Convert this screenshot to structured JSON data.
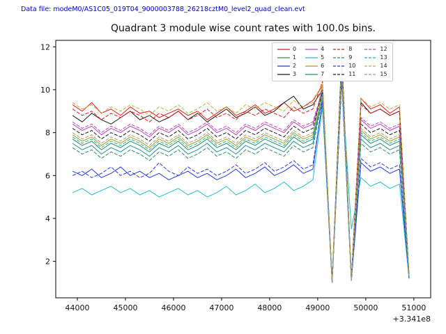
{
  "header": {
    "data_file_label": "Data file: modeM0/AS1C05_019T04_9000003788_26218cztM0_level2_quad_clean.evt"
  },
  "chart_data": {
    "type": "line",
    "title": "Quadrant 3 module wise count rates with 100.0s bins.",
    "xlabel": "",
    "ylabel": "",
    "x_offset_label": "+3.341e8",
    "xlim": [
      43550,
      51350
    ],
    "ylim": [
      0.3,
      12.3
    ],
    "xtick_values": [
      44000,
      45000,
      46000,
      47000,
      48000,
      49000,
      50000,
      51000
    ],
    "xtick_labels": [
      "44000",
      "45000",
      "46000",
      "47000",
      "48000",
      "49000",
      "50000",
      "51000"
    ],
    "ytick_values": [
      2,
      4,
      6,
      8,
      10,
      12
    ],
    "ytick_labels": [
      "2",
      "4",
      "6",
      "8",
      "10",
      "12"
    ],
    "legend_position": "upper right",
    "legend_columns": 4,
    "grid": false,
    "x": [
      43900,
      44100,
      44300,
      44500,
      44700,
      44900,
      45100,
      45300,
      45500,
      45700,
      45900,
      46100,
      46300,
      46500,
      46700,
      46900,
      47100,
      47300,
      47500,
      47700,
      47900,
      48100,
      48300,
      48500,
      48700,
      48900,
      49100,
      49300,
      49500,
      49700,
      49900,
      50100,
      50300,
      50500,
      50700,
      50900
    ],
    "series": [
      {
        "name": "0",
        "color": "#e11919",
        "dashed": false,
        "values": [
          9.3,
          9.0,
          9.4,
          8.9,
          9.1,
          8.8,
          9.2,
          8.9,
          9.0,
          8.7,
          8.9,
          9.1,
          8.8,
          9.0,
          8.6,
          8.9,
          9.2,
          8.8,
          9.0,
          9.3,
          8.9,
          9.1,
          9.4,
          9.0,
          9.2,
          9.5,
          10.2,
          1.0,
          11.3,
          1.2,
          9.6,
          9.1,
          9.3,
          8.9,
          9.2,
          1.3
        ]
      },
      {
        "name": "1",
        "color": "#2e8b57",
        "dashed": false,
        "values": [
          7.7,
          7.4,
          7.6,
          7.2,
          7.5,
          7.3,
          7.6,
          7.4,
          7.1,
          7.5,
          7.3,
          7.6,
          7.2,
          7.4,
          7.7,
          7.3,
          7.5,
          7.2,
          7.6,
          7.4,
          7.7,
          7.5,
          7.3,
          7.8,
          7.5,
          7.7,
          9.8,
          1.0,
          11.0,
          1.1,
          7.9,
          7.5,
          7.7,
          7.4,
          7.6,
          1.3
        ]
      },
      {
        "name": "2",
        "color": "#2438d8",
        "dashed": false,
        "values": [
          6.2,
          6.0,
          6.3,
          5.9,
          6.1,
          6.4,
          6.0,
          6.2,
          5.9,
          6.1,
          5.8,
          6.0,
          6.2,
          5.9,
          6.1,
          5.8,
          6.0,
          6.3,
          5.9,
          6.1,
          6.4,
          6.0,
          6.2,
          6.5,
          6.1,
          6.3,
          9.5,
          1.0,
          10.8,
          1.1,
          6.6,
          6.2,
          6.4,
          6.1,
          6.3,
          1.2
        ]
      },
      {
        "name": "3",
        "color": "#1a1a1a",
        "dashed": false,
        "values": [
          8.8,
          8.5,
          8.9,
          8.6,
          8.4,
          8.7,
          9.0,
          8.6,
          8.8,
          8.5,
          8.7,
          9.0,
          8.6,
          8.9,
          8.5,
          8.8,
          9.1,
          8.7,
          8.9,
          9.2,
          8.8,
          9.0,
          9.4,
          9.7,
          9.1,
          9.3,
          10.0,
          1.1,
          11.7,
          1.2,
          9.4,
          8.9,
          9.1,
          8.8,
          9.0,
          1.4
        ]
      },
      {
        "name": "4",
        "color": "#bb44bb",
        "dashed": false,
        "values": [
          8.4,
          8.1,
          8.3,
          7.9,
          8.2,
          8.0,
          8.3,
          8.1,
          7.8,
          8.2,
          8.0,
          8.3,
          7.9,
          8.1,
          8.4,
          8.0,
          8.2,
          7.9,
          8.3,
          8.1,
          8.4,
          8.2,
          8.0,
          8.5,
          8.2,
          8.4,
          9.9,
          1.0,
          11.1,
          1.1,
          8.6,
          8.2,
          8.4,
          8.1,
          8.3,
          1.3
        ]
      },
      {
        "name": "5",
        "color": "#1fbecb",
        "dashed": false,
        "values": [
          5.2,
          5.4,
          5.1,
          5.3,
          5.5,
          5.2,
          5.4,
          5.1,
          5.3,
          5.0,
          5.2,
          5.4,
          5.1,
          5.3,
          5.0,
          5.2,
          5.5,
          5.1,
          5.3,
          5.6,
          5.2,
          5.4,
          5.7,
          5.3,
          5.5,
          5.8,
          9.2,
          1.0,
          10.5,
          3.5,
          5.9,
          5.5,
          5.7,
          5.4,
          5.6,
          1.2
        ]
      },
      {
        "name": "6",
        "color": "#a89a10",
        "dashed": false,
        "values": [
          7.9,
          7.6,
          7.8,
          7.4,
          7.7,
          7.5,
          7.8,
          7.6,
          7.3,
          7.7,
          7.5,
          7.8,
          7.4,
          7.6,
          7.9,
          7.5,
          7.7,
          7.4,
          7.8,
          7.6,
          7.9,
          7.7,
          7.5,
          8.0,
          7.7,
          7.9,
          10.3,
          1.1,
          10.9,
          1.2,
          8.1,
          7.7,
          7.9,
          7.6,
          7.8,
          1.3
        ]
      },
      {
        "name": "7",
        "color": "#1c8f96",
        "dashed": false,
        "values": [
          7.5,
          7.2,
          7.4,
          7.0,
          7.3,
          7.1,
          7.4,
          7.2,
          6.9,
          7.3,
          7.1,
          7.4,
          7.0,
          7.2,
          7.5,
          7.1,
          7.3,
          7.0,
          7.4,
          7.2,
          7.5,
          7.3,
          7.1,
          7.6,
          7.3,
          7.5,
          9.7,
          1.0,
          10.7,
          1.1,
          7.7,
          7.3,
          7.5,
          7.2,
          7.4,
          1.2
        ]
      },
      {
        "name": "8",
        "color": "#e11919",
        "dashed": true,
        "values": [
          9.1,
          8.8,
          9.0,
          8.6,
          8.9,
          8.7,
          9.0,
          8.8,
          8.5,
          8.9,
          8.7,
          9.0,
          8.6,
          8.8,
          9.1,
          8.7,
          8.9,
          8.6,
          9.0,
          8.8,
          9.1,
          8.9,
          8.7,
          9.2,
          8.9,
          9.1,
          10.4,
          1.1,
          11.2,
          1.2,
          9.3,
          8.9,
          9.1,
          8.8,
          9.0,
          1.3
        ]
      },
      {
        "name": "9",
        "color": "#2e8b57",
        "dashed": true,
        "values": [
          7.3,
          7.0,
          7.2,
          6.8,
          7.1,
          6.9,
          7.2,
          7.0,
          6.7,
          7.1,
          6.9,
          7.2,
          6.8,
          7.0,
          7.3,
          6.9,
          7.1,
          6.8,
          7.2,
          7.0,
          7.3,
          7.1,
          6.9,
          7.4,
          7.1,
          7.3,
          9.6,
          1.0,
          10.6,
          1.1,
          7.5,
          7.1,
          7.3,
          7.0,
          7.2,
          1.2
        ]
      },
      {
        "name": "10",
        "color": "#2438d8",
        "dashed": true,
        "values": [
          6.0,
          6.2,
          5.9,
          6.1,
          6.4,
          6.0,
          6.2,
          5.9,
          6.1,
          6.6,
          6.2,
          6.0,
          6.4,
          6.1,
          6.3,
          6.0,
          6.2,
          6.5,
          6.1,
          6.3,
          6.6,
          6.2,
          6.4,
          6.7,
          6.3,
          6.5,
          9.4,
          1.0,
          10.4,
          1.1,
          6.8,
          6.4,
          6.6,
          6.3,
          6.5,
          1.2
        ]
      },
      {
        "name": "11",
        "color": "#1a1a1a",
        "dashed": true,
        "values": [
          8.2,
          7.9,
          8.1,
          7.7,
          8.0,
          7.8,
          8.1,
          7.9,
          7.6,
          8.0,
          7.8,
          8.1,
          7.7,
          7.9,
          8.2,
          7.8,
          8.0,
          7.7,
          8.1,
          7.9,
          8.2,
          8.0,
          7.8,
          8.3,
          8.0,
          8.2,
          9.9,
          1.1,
          11.0,
          1.2,
          8.4,
          8.0,
          8.2,
          7.9,
          8.1,
          1.3
        ]
      },
      {
        "name": "12",
        "color": "#bb44bb",
        "dashed": true,
        "values": [
          8.5,
          8.2,
          8.4,
          8.0,
          8.3,
          8.1,
          8.4,
          8.2,
          7.9,
          8.3,
          8.1,
          8.4,
          8.0,
          8.2,
          8.5,
          8.1,
          8.3,
          8.0,
          8.4,
          8.2,
          8.5,
          8.3,
          8.1,
          8.6,
          8.3,
          8.5,
          10.0,
          1.0,
          11.2,
          1.1,
          8.7,
          8.3,
          8.5,
          8.2,
          8.4,
          1.3
        ]
      },
      {
        "name": "13",
        "color": "#18b0c0",
        "dashed": true,
        "values": [
          7.8,
          7.5,
          7.7,
          7.3,
          7.6,
          7.4,
          7.7,
          7.5,
          7.2,
          7.6,
          7.4,
          7.7,
          7.3,
          7.5,
          7.8,
          7.4,
          7.6,
          7.3,
          7.7,
          7.5,
          7.8,
          7.6,
          7.4,
          7.9,
          7.6,
          7.8,
          9.8,
          1.0,
          10.8,
          1.1,
          8.0,
          7.6,
          7.8,
          7.5,
          7.7,
          1.2
        ]
      },
      {
        "name": "14",
        "color": "#bdb23a",
        "dashed": true,
        "values": [
          9.4,
          9.1,
          9.3,
          8.9,
          9.2,
          9.0,
          9.3,
          9.1,
          8.8,
          9.2,
          9.0,
          9.3,
          8.9,
          9.1,
          9.4,
          9.0,
          9.2,
          8.9,
          9.3,
          9.1,
          9.4,
          9.2,
          9.0,
          9.5,
          9.2,
          9.4,
          10.3,
          1.1,
          11.5,
          1.2,
          9.6,
          9.2,
          9.4,
          9.1,
          9.3,
          1.4
        ]
      },
      {
        "name": "15",
        "color": "#9c9c84",
        "dashed": true,
        "values": [
          8.0,
          7.7,
          7.9,
          7.5,
          7.8,
          7.6,
          7.9,
          7.7,
          7.4,
          7.8,
          7.6,
          7.9,
          7.5,
          7.7,
          8.0,
          7.6,
          7.8,
          7.5,
          7.9,
          7.7,
          8.0,
          7.8,
          7.6,
          8.1,
          7.8,
          8.0,
          9.7,
          1.0,
          10.9,
          1.1,
          8.2,
          7.8,
          8.0,
          7.7,
          7.9,
          1.3
        ]
      }
    ]
  }
}
